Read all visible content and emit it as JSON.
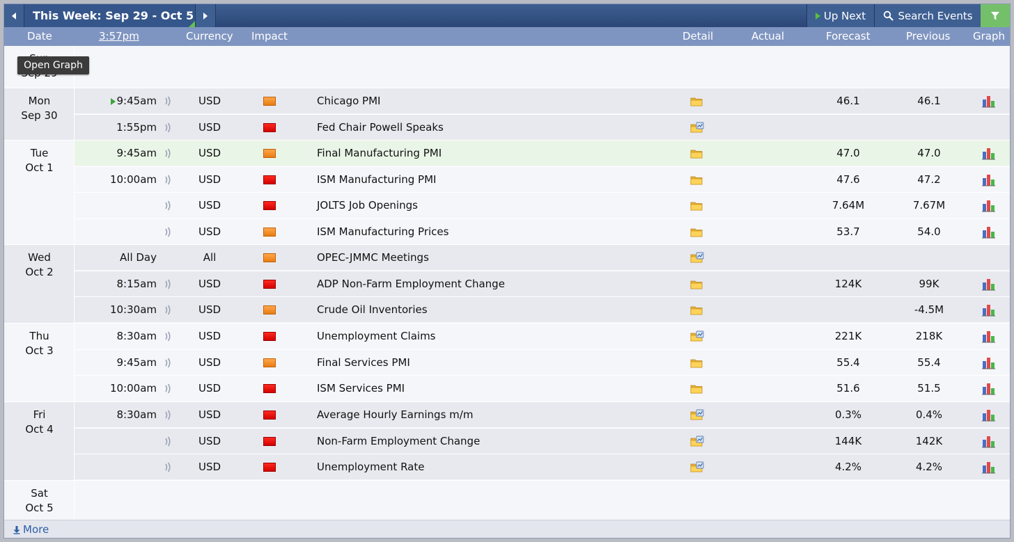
{
  "nav": {
    "week_label": "This Week: Sep 29 - Oct 5",
    "up_next_label": "Up Next",
    "search_label": "Search Events"
  },
  "columns": {
    "date": "Date",
    "time": "3:57pm",
    "currency": "Currency",
    "impact": "Impact",
    "detail": "Detail",
    "actual": "Actual",
    "forecast": "Forecast",
    "previous": "Previous",
    "graph": "Graph"
  },
  "tooltip": "Open Graph",
  "days": [
    {
      "day": "Sun",
      "date": "Sep 29"
    },
    {
      "day": "Mon",
      "date": "Sep 30"
    },
    {
      "day": "Tue",
      "date": "Oct 1"
    },
    {
      "day": "Wed",
      "date": "Oct 2"
    },
    {
      "day": "Thu",
      "date": "Oct 3"
    },
    {
      "day": "Fri",
      "date": "Oct 4"
    },
    {
      "day": "Sat",
      "date": "Oct 5"
    }
  ],
  "events": [
    {
      "time": "9:45am",
      "currency": "USD",
      "impact": "medium",
      "event": "Chicago PMI",
      "forecast": "46.1",
      "previous": "46.1",
      "detail_icon": "folder-icon",
      "graph": true
    },
    {
      "time": "1:55pm",
      "currency": "USD",
      "impact": "high",
      "event": "Fed Chair Powell Speaks",
      "forecast": "",
      "previous": "",
      "detail_icon": "folder-chart-icon",
      "graph": false
    },
    {
      "time": "9:45am",
      "currency": "USD",
      "impact": "medium",
      "event": "Final Manufacturing PMI",
      "forecast": "47.0",
      "previous": "47.0",
      "detail_icon": "folder-icon",
      "graph": true
    },
    {
      "time": "10:00am",
      "currency": "USD",
      "impact": "high",
      "event": "ISM Manufacturing PMI",
      "forecast": "47.6",
      "previous": "47.2",
      "detail_icon": "folder-icon",
      "graph": true
    },
    {
      "time": "",
      "currency": "USD",
      "impact": "high",
      "event": "JOLTS Job Openings",
      "forecast": "7.64M",
      "previous": "7.67M",
      "detail_icon": "folder-icon",
      "graph": true
    },
    {
      "time": "",
      "currency": "USD",
      "impact": "medium",
      "event": "ISM Manufacturing Prices",
      "forecast": "53.7",
      "previous": "54.0",
      "detail_icon": "folder-icon",
      "graph": true
    },
    {
      "time": "All Day",
      "currency": "All",
      "impact": "medium",
      "event": "OPEC-JMMC Meetings",
      "forecast": "",
      "previous": "",
      "detail_icon": "folder-chart-icon",
      "graph": false
    },
    {
      "time": "8:15am",
      "currency": "USD",
      "impact": "high",
      "event": "ADP Non-Farm Employment Change",
      "forecast": "124K",
      "previous": "99K",
      "detail_icon": "folder-icon",
      "graph": true
    },
    {
      "time": "10:30am",
      "currency": "USD",
      "impact": "medium",
      "event": "Crude Oil Inventories",
      "forecast": "",
      "previous": "-4.5M",
      "detail_icon": "folder-icon",
      "graph": true
    },
    {
      "time": "8:30am",
      "currency": "USD",
      "impact": "high",
      "event": "Unemployment Claims",
      "forecast": "221K",
      "previous": "218K",
      "detail_icon": "folder-chart-icon",
      "graph": true
    },
    {
      "time": "9:45am",
      "currency": "USD",
      "impact": "medium",
      "event": "Final Services PMI",
      "forecast": "55.4",
      "previous": "55.4",
      "detail_icon": "folder-icon",
      "graph": true
    },
    {
      "time": "10:00am",
      "currency": "USD",
      "impact": "high",
      "event": "ISM Services PMI",
      "forecast": "51.6",
      "previous": "51.5",
      "detail_icon": "folder-icon",
      "graph": true
    },
    {
      "time": "8:30am",
      "currency": "USD",
      "impact": "high",
      "event": "Average Hourly Earnings m/m",
      "forecast": "0.3%",
      "previous": "0.4%",
      "detail_icon": "folder-chart-icon",
      "graph": true
    },
    {
      "time": "",
      "currency": "USD",
      "impact": "high",
      "event": "Non-Farm Employment Change",
      "forecast": "144K",
      "previous": "142K",
      "detail_icon": "folder-chart-icon",
      "graph": true
    },
    {
      "time": "",
      "currency": "USD",
      "impact": "high",
      "event": "Unemployment Rate",
      "forecast": "4.2%",
      "previous": "4.2%",
      "detail_icon": "folder-chart-icon",
      "graph": true
    }
  ],
  "colors": {
    "nav_bg": "#35568a",
    "header_bg": "#7f95c1",
    "impact_high": "#e00000",
    "impact_medium": "#f08a24",
    "highlight_row": "#e9f5e6",
    "filter_green": "#74c06a"
  },
  "footer": {
    "more_label": "More"
  }
}
